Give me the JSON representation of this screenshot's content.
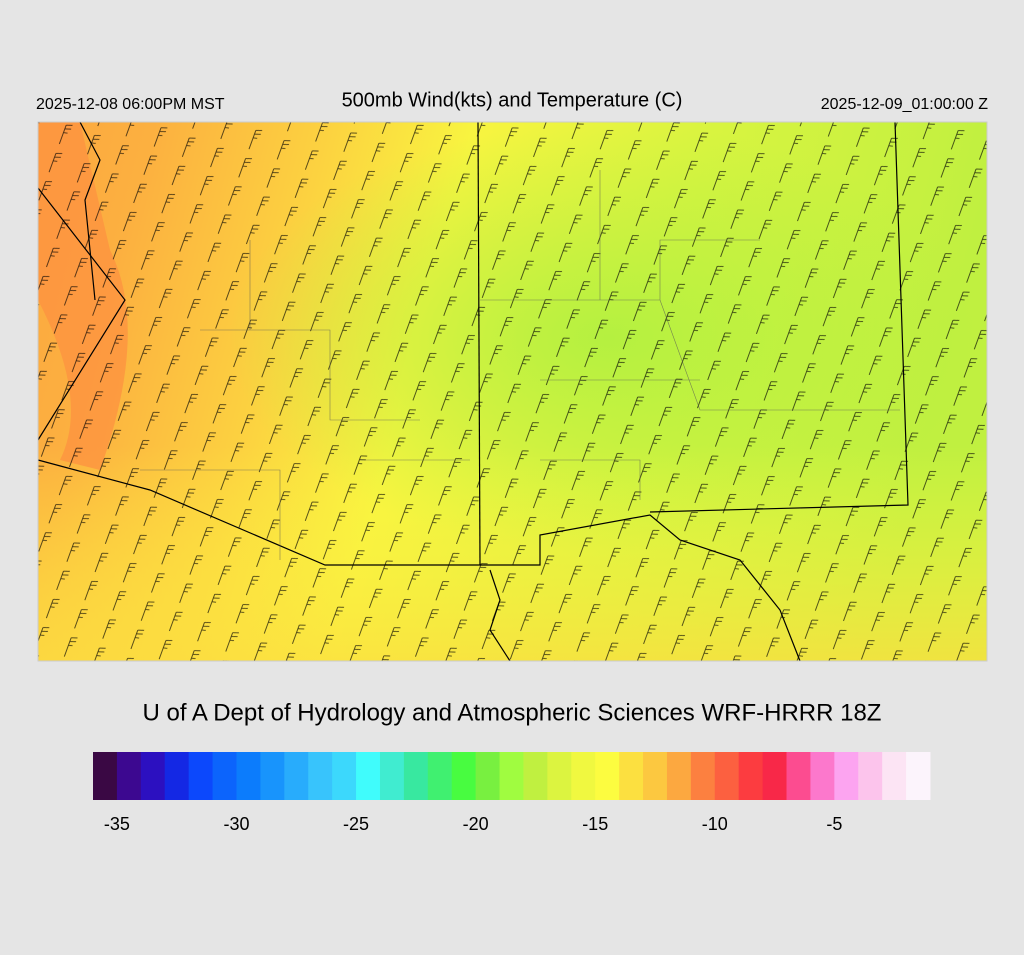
{
  "header": {
    "left": "2025-12-08 06:00PM MST",
    "title": "500mb Wind(kts) and Temperature (C)",
    "right": "2025-12-09_01:00:00 Z"
  },
  "credit": "U of A Dept of Hydrology and Atmospheric Sciences WRF-HRRR 18Z",
  "colorbar": {
    "range": [
      -36,
      -1
    ],
    "ticks": [
      -35,
      -30,
      -25,
      -20,
      -15,
      -10,
      -5
    ],
    "colors": [
      "#3a0844",
      "#3c0890",
      "#2c10c0",
      "#1428e4",
      "#0c48fc",
      "#0c64fc",
      "#0c7cfc",
      "#1894fc",
      "#28acfc",
      "#38c4fc",
      "#3cd8fc",
      "#40fcfc",
      "#40ecd0",
      "#38e8a0",
      "#40f070",
      "#48fc40",
      "#78f040",
      "#a0fc40",
      "#c0f040",
      "#dcf440",
      "#f0f840",
      "#fcfc40",
      "#fce040",
      "#fcc840",
      "#fca840",
      "#fc8040",
      "#fc6040",
      "#fc3c40",
      "#f82848",
      "#fc4c90",
      "#fc78cc",
      "#fca4f0",
      "#fcc4ec",
      "#fce4f4",
      "#fcf4fc"
    ]
  }
}
